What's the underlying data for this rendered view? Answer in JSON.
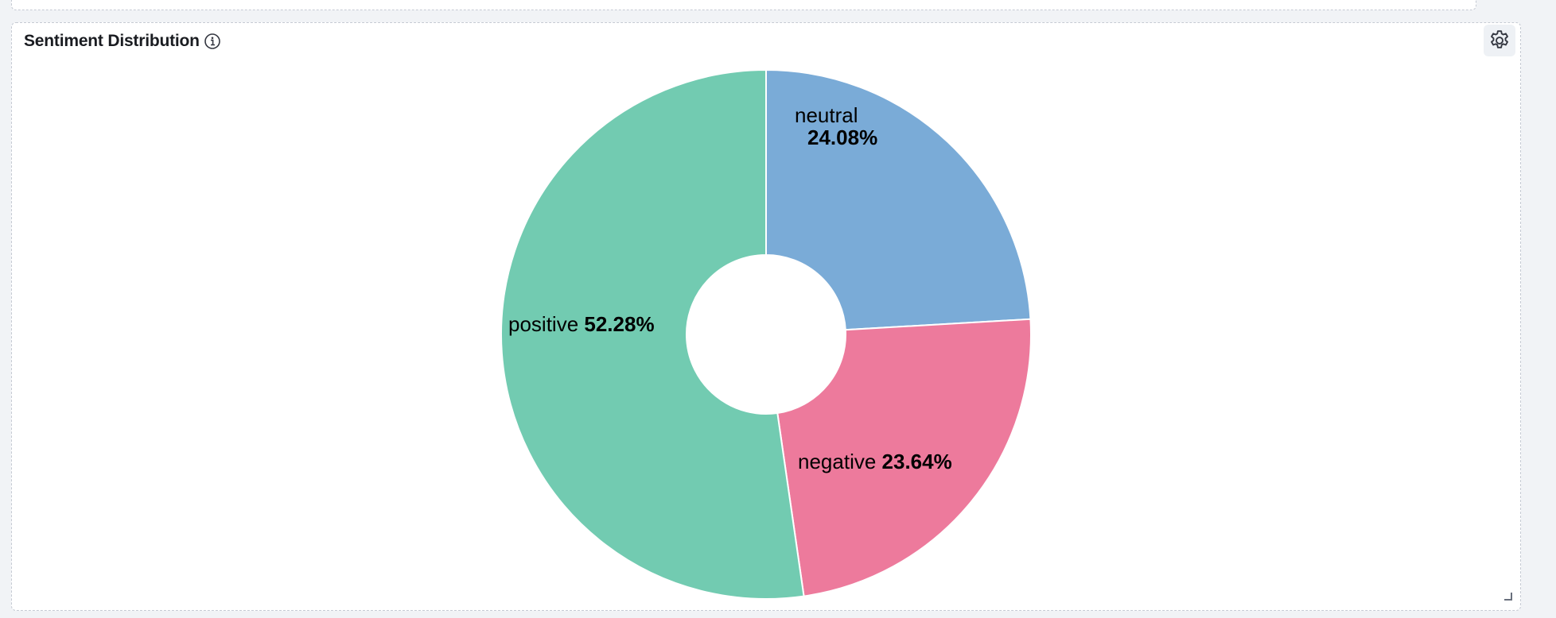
{
  "panel": {
    "title": "Sentiment Distribution"
  },
  "icons": {
    "info": "info-icon",
    "settings": "gear-icon"
  },
  "chart_data": {
    "type": "pie",
    "donut": true,
    "title": "Sentiment Distribution",
    "slices": [
      {
        "label": "neutral",
        "percent": 24.08,
        "percent_label": "24.08%",
        "color": "#7aabd7"
      },
      {
        "label": "negative",
        "percent": 23.64,
        "percent_label": "23.64%",
        "color": "#ed7a9c"
      },
      {
        "label": "positive",
        "percent": 52.28,
        "percent_label": "52.28%",
        "color": "#72cbb1"
      }
    ],
    "legend": "none"
  }
}
